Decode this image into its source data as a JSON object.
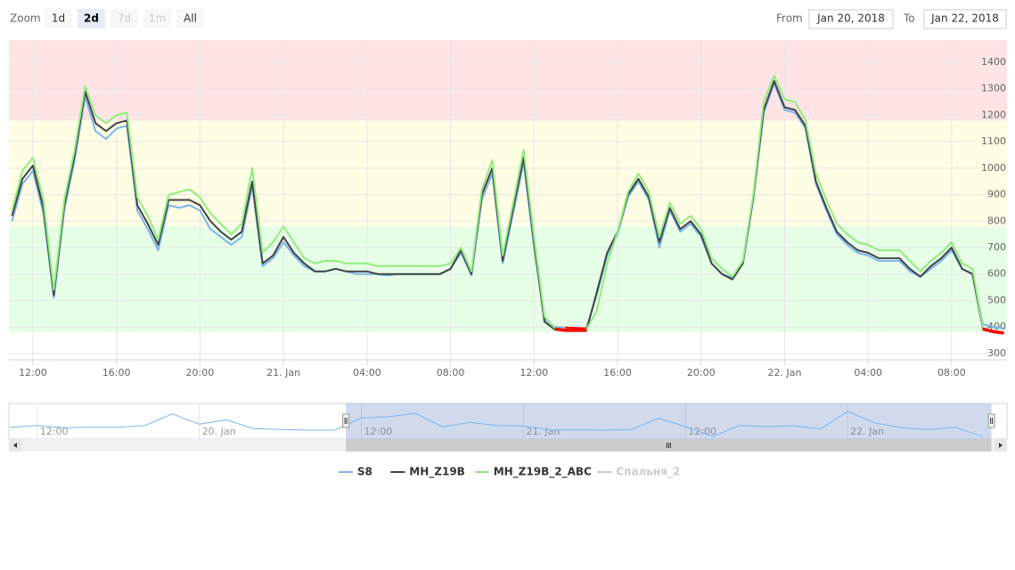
{
  "chart_data": {
    "type": "line",
    "range_selector": {
      "label": "Zoom",
      "buttons": [
        "1d",
        "2d",
        "7d",
        "1m",
        "All"
      ],
      "selected": 1,
      "disabled": [
        2,
        3
      ],
      "from_label": "From",
      "from": "Jan 20, 2018",
      "to_label": "To",
      "to": "Jan 22, 2018"
    },
    "x": [
      11,
      11.5,
      12,
      12.5,
      13,
      13.5,
      14,
      14.5,
      15,
      15.5,
      16,
      16.5,
      17,
      17.5,
      18,
      18.5,
      19,
      19.5,
      20,
      20.5,
      21,
      21.5,
      22,
      22.5,
      23,
      23.5,
      24,
      24.5,
      25,
      25.5,
      26,
      26.5,
      27,
      27.5,
      28,
      28.5,
      29,
      29.5,
      30,
      30.5,
      31,
      31.5,
      32,
      32.5,
      33,
      33.5,
      34,
      34.5,
      35,
      35.5,
      36,
      36.5,
      37,
      37.5,
      38,
      38.5,
      39,
      39.5,
      40,
      40.5,
      41,
      41.5,
      42,
      42.5,
      43,
      43.5,
      44,
      44.5,
      45,
      45.5,
      46,
      46.5,
      47,
      47.5,
      48,
      48.5,
      49,
      49.5,
      50,
      50.5,
      51,
      51.5,
      52,
      52.5,
      53,
      53.5,
      54,
      54.5,
      55,
      55.5,
      56,
      56.5,
      57,
      57.5,
      58,
      58.5
    ],
    "series": [
      {
        "name": "S8",
        "color": "#7cb5ec",
        "visible": true,
        "values": [
          800,
          940,
          990,
          830,
          510,
          840,
          1030,
          1270,
          1140,
          1110,
          1150,
          1160,
          840,
          770,
          690,
          860,
          850,
          860,
          840,
          770,
          740,
          710,
          740,
          930,
          630,
          660,
          720,
          670,
          630,
          610,
          610,
          620,
          610,
          600,
          600,
          600,
          595,
          600,
          600,
          600,
          600,
          600,
          620,
          680,
          595,
          880,
          980,
          640,
          830,
          1020,
          700,
          430,
          400,
          398,
          396,
          395,
          520,
          670,
          750,
          890,
          950,
          880,
          700,
          840,
          760,
          790,
          740,
          640,
          600,
          585,
          640,
          880,
          1210,
          1320,
          1220,
          1210,
          1150,
          940,
          840,
          750,
          710,
          680,
          670,
          650,
          650,
          650,
          610,
          590,
          620,
          650,
          690,
          620,
          600,
          410,
          400,
          395
        ]
      },
      {
        "name": "MH_Z19B",
        "color": "#434348",
        "visible": true,
        "values": [
          820,
          960,
          1010,
          850,
          520,
          860,
          1050,
          1290,
          1170,
          1140,
          1170,
          1180,
          860,
          790,
          710,
          880,
          880,
          880,
          860,
          800,
          760,
          730,
          760,
          950,
          640,
          670,
          740,
          680,
          640,
          610,
          610,
          620,
          610,
          610,
          610,
          600,
          600,
          600,
          600,
          600,
          600,
          600,
          620,
          690,
          600,
          900,
          1000,
          650,
          850,
          1040,
          720,
          420,
          390,
          385,
          385,
          385,
          530,
          680,
          760,
          900,
          960,
          890,
          720,
          850,
          770,
          800,
          750,
          640,
          600,
          580,
          640,
          890,
          1220,
          1330,
          1230,
          1220,
          1160,
          950,
          850,
          760,
          720,
          690,
          680,
          660,
          660,
          660,
          620,
          590,
          630,
          660,
          700,
          620,
          600,
          390,
          380,
          375
        ]
      },
      {
        "name": "MH_Z19B_2_ABC",
        "color": "#90ed7d",
        "visible": true,
        "values": [
          840,
          990,
          1040,
          880,
          540,
          880,
          1070,
          1310,
          1200,
          1170,
          1200,
          1210,
          890,
          820,
          730,
          900,
          910,
          920,
          890,
          830,
          790,
          750,
          790,
          1000,
          680,
          720,
          780,
          720,
          660,
          640,
          650,
          650,
          640,
          640,
          640,
          630,
          630,
          630,
          630,
          630,
          630,
          630,
          640,
          700,
          610,
          920,
          1030,
          670,
          870,
          1070,
          740,
          440,
          395,
          390,
          390,
          390,
          460,
          640,
          760,
          910,
          980,
          910,
          740,
          870,
          790,
          820,
          770,
          660,
          620,
          590,
          650,
          900,
          1250,
          1350,
          1260,
          1250,
          1180,
          980,
          880,
          790,
          750,
          720,
          710,
          690,
          690,
          690,
          650,
          610,
          650,
          680,
          720,
          640,
          620,
          395,
          385,
          380
        ]
      },
      {
        "name": "Спальня_2",
        "color": "#cccccc",
        "visible": false
      }
    ],
    "threshold": {
      "value": 400,
      "color": "#ff0000"
    },
    "plot_bands": [
      {
        "from": 380,
        "to": 780,
        "color": "#e6fee6"
      },
      {
        "from": 780,
        "to": 1180,
        "color": "#fefee4"
      },
      {
        "from": 1180,
        "to": 1484,
        "color": "#fee4e4"
      }
    ],
    "xlim": [
      10.85,
      58.65
    ],
    "xticks": [
      {
        "value": 12,
        "label": "12:00"
      },
      {
        "value": 16,
        "label": "16:00"
      },
      {
        "value": 20,
        "label": "20:00"
      },
      {
        "value": 24,
        "label": "21. Jan"
      },
      {
        "value": 28,
        "label": "04:00"
      },
      {
        "value": 32,
        "label": "08:00"
      },
      {
        "value": 36,
        "label": "12:00"
      },
      {
        "value": 40,
        "label": "16:00"
      },
      {
        "value": 44,
        "label": "20:00"
      },
      {
        "value": 48,
        "label": "22. Jan"
      },
      {
        "value": 52,
        "label": "04:00"
      },
      {
        "value": 56,
        "label": "08:00"
      }
    ],
    "ylim": [
      276,
      1484
    ],
    "yticks": [
      300,
      400,
      500,
      600,
      700,
      800,
      900,
      1000,
      1100,
      1200,
      1300,
      1400
    ],
    "grid": true,
    "navigator": {
      "color": "#7cb5ec",
      "x": [
        -14,
        -12,
        -10,
        -8,
        -6,
        -4,
        -2,
        0,
        2,
        4,
        6,
        8,
        10,
        12,
        14,
        16,
        18,
        20,
        22,
        24,
        26,
        28,
        30,
        32,
        34,
        36,
        38,
        40,
        42,
        44,
        46,
        48,
        50,
        52,
        54,
        56,
        58
      ],
      "values": [
        700,
        760,
        680,
        700,
        700,
        760,
        1150,
        800,
        950,
        650,
        620,
        600,
        600,
        1010,
        1050,
        1170,
        710,
        860,
        760,
        740,
        610,
        610,
        600,
        620,
        1000,
        720,
        385,
        760,
        720,
        750,
        640,
        1230,
        850,
        680,
        620,
        700,
        380
      ],
      "xlim": [
        -14.1,
        59.8
      ],
      "ylim": [
        300,
        1500
      ],
      "xticks": [
        {
          "value": -12,
          "label": "12:00"
        },
        {
          "value": 0,
          "label": "20. Jan"
        },
        {
          "value": 12,
          "label": "12:00"
        },
        {
          "value": 24,
          "label": "21. Jan"
        },
        {
          "value": 36,
          "label": "12:00"
        },
        {
          "value": 48,
          "label": "22. Jan"
        }
      ]
    }
  }
}
